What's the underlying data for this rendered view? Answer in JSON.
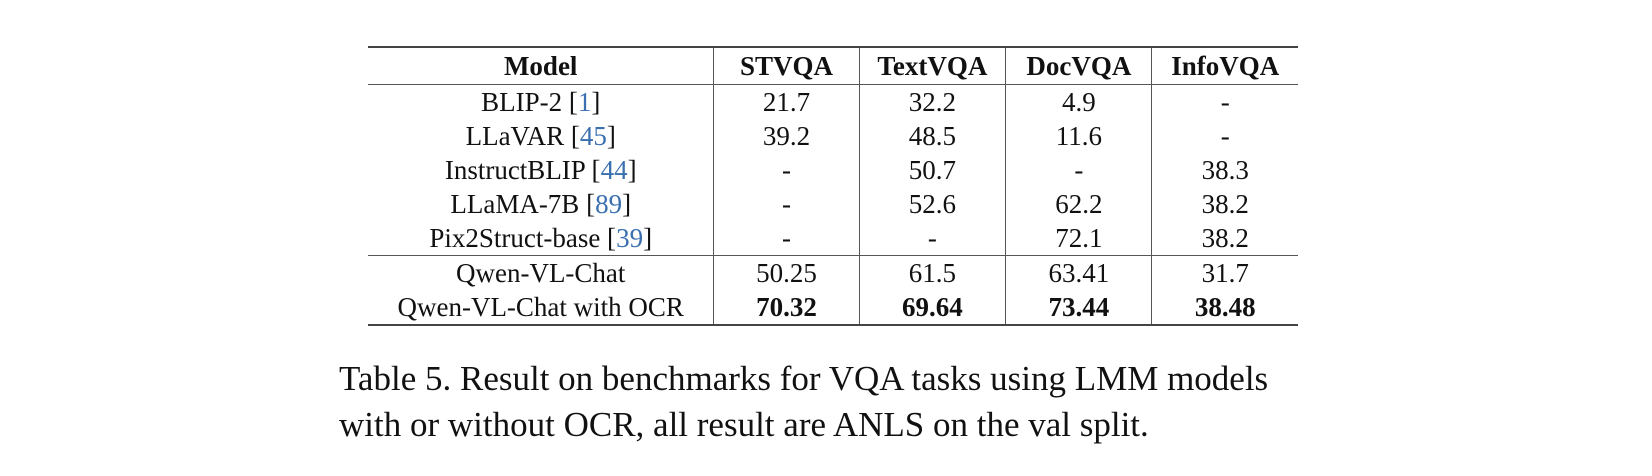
{
  "table": {
    "headers": [
      "Model",
      "STVQA",
      "TextVQA",
      "DocVQA",
      "InfoVQA"
    ],
    "rows": [
      {
        "model": "BLIP-2 [",
        "cite": "1",
        "close": "]",
        "values": [
          "21.7",
          "32.2",
          "4.9",
          "-"
        ],
        "bold": false
      },
      {
        "model": "LLaVAR [",
        "cite": "45",
        "close": "]",
        "values": [
          "39.2",
          "48.5",
          "11.6",
          "-"
        ],
        "bold": false
      },
      {
        "model": "InstructBLIP [",
        "cite": "44",
        "close": "]",
        "values": [
          "-",
          "50.7",
          "-",
          "38.3"
        ],
        "bold": false
      },
      {
        "model": "LLaMA-7B [",
        "cite": "89",
        "close": "]",
        "values": [
          "-",
          "52.6",
          "62.2",
          "38.2"
        ],
        "bold": false
      },
      {
        "model": "Pix2Struct-base [",
        "cite": "39",
        "close": "]",
        "values": [
          "-",
          "-",
          "72.1",
          "38.2"
        ],
        "bold": false
      },
      {
        "model": "Qwen-VL-Chat",
        "cite": "",
        "close": "",
        "values": [
          "50.25",
          "61.5",
          "63.41",
          "31.7"
        ],
        "bold": false
      },
      {
        "model": "Qwen-VL-Chat with OCR",
        "cite": "",
        "close": "",
        "values": [
          "70.32",
          "69.64",
          "73.44",
          "38.48"
        ],
        "bold": true
      }
    ]
  },
  "caption": {
    "line1": "Table 5. Result on benchmarks for VQA tasks using LMM models",
    "line2": "with or without OCR, all result are ANLS on the val split."
  },
  "colors": {
    "citation": "#3a6fb0",
    "text": "#111111",
    "rule": "#444444"
  }
}
